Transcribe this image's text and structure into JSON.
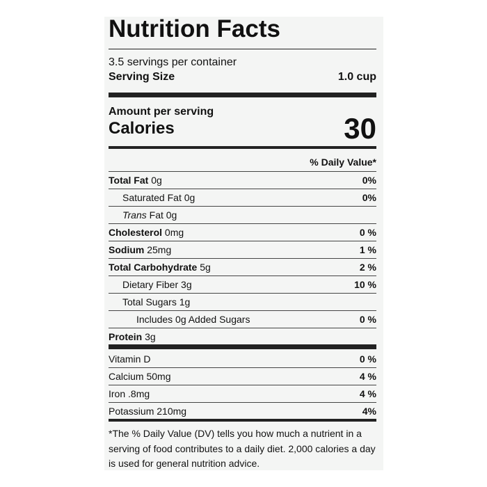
{
  "title": "Nutrition Facts",
  "servings": "3.5 servings per container",
  "serving_size": {
    "label": "Serving Size",
    "value": "1.0 cup"
  },
  "amount_per_serving": "Amount per serving",
  "calories": {
    "label": "Calories",
    "value": "30"
  },
  "dv_header": "% Daily Value*",
  "nutrients": [
    {
      "name": "Total Fat",
      "amount": "0g",
      "dv": "0%"
    },
    {
      "name": "Saturated Fat",
      "amount": "0g",
      "dv": "0%"
    },
    {
      "name_italic": "Trans",
      "name": "Fat",
      "amount": "0g"
    },
    {
      "name": "Cholesterol",
      "amount": "0mg",
      "dv": "0 %"
    },
    {
      "name": "Sodium",
      "amount": "25mg",
      "dv": "1 %"
    },
    {
      "name": "Total Carbohydrate",
      "amount": "5g",
      "dv": "2 %"
    },
    {
      "name": "Dietary Fiber",
      "amount": "3g",
      "dv": "10 %"
    },
    {
      "name": "Total Sugars",
      "amount": "1g"
    },
    {
      "name": "Includes 0g Added Sugars",
      "dv": "0 %"
    },
    {
      "name": "Protein",
      "amount": "3g"
    }
  ],
  "vitamins": [
    {
      "name": "Vitamin D",
      "dv": "0 %"
    },
    {
      "name": "Calcium",
      "amount": "50mg",
      "dv": "4 %"
    },
    {
      "name": "Iron",
      "amount": ".8mg",
      "dv": "4 %"
    },
    {
      "name": "Potassium",
      "amount": "210mg",
      "dv": "4%"
    }
  ],
  "footnote": "*The % Daily Value (DV) tells you how much a nutrient in a serving of food contributes to a daily diet. 2,000 calories a day is used for general nutrition advice."
}
